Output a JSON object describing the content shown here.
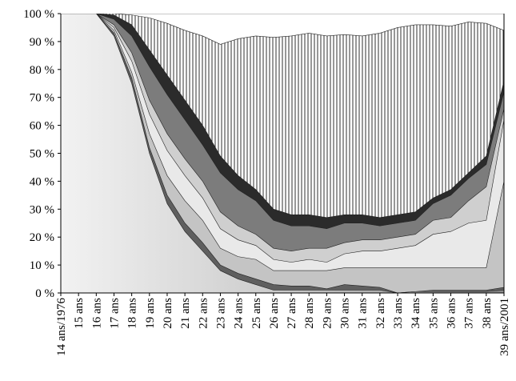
{
  "chart_data": {
    "type": "area",
    "stacked": true,
    "normalized_percent": true,
    "title": "",
    "xlabel": "",
    "ylabel": "",
    "ylim": [
      0,
      100
    ],
    "yticks": [
      "0 %",
      "10 %",
      "20 %",
      "30 %",
      "40 %",
      "50 %",
      "60 %",
      "70 %",
      "80 %",
      "90 %",
      "100 %"
    ],
    "categories": [
      "14 ans/1976",
      "15 ans",
      "16 ans",
      "17 ans",
      "18 ans",
      "19 ans",
      "20 ans",
      "21 ans",
      "22 ans",
      "23 ans",
      "24 ans",
      "25 ans",
      "26 ans",
      "27 ans",
      "28 ans",
      "29 ans",
      "30 ans",
      "31 ans",
      "32 ans",
      "33 ans",
      "34 ans",
      "35 ans",
      "36 ans",
      "37 ans",
      "38 ans",
      "39 ans/2001"
    ],
    "grid": false,
    "legend": "none",
    "cumulative_boundaries_note_free": true,
    "boundaries": [
      {
        "fill": "gradient-grey",
        "values": [
          100,
          100,
          100,
          92,
          75,
          50,
          32,
          22,
          15,
          8,
          5,
          3,
          1,
          1,
          1,
          1,
          1,
          1,
          1,
          0,
          0.5,
          0.5,
          0.5,
          0.5,
          0.5,
          1
        ]
      },
      {
        "fill": "#5f5f5f",
        "values": [
          100,
          100,
          100,
          93,
          77,
          52,
          35,
          25,
          18,
          10,
          7,
          5,
          3,
          2.5,
          2.5,
          1.5,
          3,
          2.5,
          2,
          0,
          0.5,
          1,
          1,
          1,
          1,
          2
        ]
      },
      {
        "fill": "#c4c4c4",
        "values": [
          100,
          100,
          100,
          94,
          79,
          57,
          42,
          33,
          26,
          16,
          13,
          12,
          8,
          8,
          8,
          8,
          9,
          9,
          9,
          9,
          9,
          9,
          9,
          9,
          9,
          40
        ]
      },
      {
        "fill": "#e9e9e9",
        "values": [
          100,
          100,
          100,
          95,
          83,
          64,
          51,
          42,
          34,
          23,
          19,
          17,
          12,
          11,
          12,
          11,
          14,
          15,
          15,
          16,
          17,
          21,
          22,
          25,
          26,
          62
        ]
      },
      {
        "fill": "#cfcfcf",
        "values": [
          100,
          100,
          100,
          96,
          86,
          69,
          57,
          48,
          40,
          29,
          24,
          21,
          16,
          15,
          16,
          16,
          18,
          19,
          19,
          20,
          21,
          26,
          27,
          33,
          38,
          66
        ]
      },
      {
        "fill": "#7c7c7c",
        "values": [
          100,
          100,
          100,
          98,
          92,
          81,
          71,
          62,
          53,
          43,
          37,
          33,
          26,
          24,
          24,
          23,
          25,
          25,
          24,
          25,
          26,
          32,
          35,
          41,
          46,
          72
        ]
      },
      {
        "fill": "#2b2b2b",
        "values": [
          100,
          100,
          100,
          99.5,
          96,
          87,
          78,
          69,
          60,
          49,
          42,
          37,
          30,
          28,
          28,
          27,
          28,
          28,
          27,
          28,
          29,
          34,
          37,
          43,
          49,
          76
        ]
      },
      {
        "fill": "vertical-hatch",
        "values": [
          100,
          100,
          100,
          100,
          99.5,
          98.5,
          96.5,
          94,
          92,
          89,
          91,
          92,
          91.5,
          92,
          93,
          92,
          92.5,
          92,
          93,
          95,
          96,
          96,
          95.5,
          97,
          96.5,
          94
        ]
      },
      {
        "fill": "#ffffff",
        "values": [
          100,
          100,
          100,
          100,
          100,
          100,
          100,
          100,
          100,
          100,
          100,
          100,
          100,
          100,
          100,
          100,
          100,
          100,
          100,
          100,
          100,
          100,
          100,
          100,
          100,
          100
        ]
      }
    ]
  }
}
